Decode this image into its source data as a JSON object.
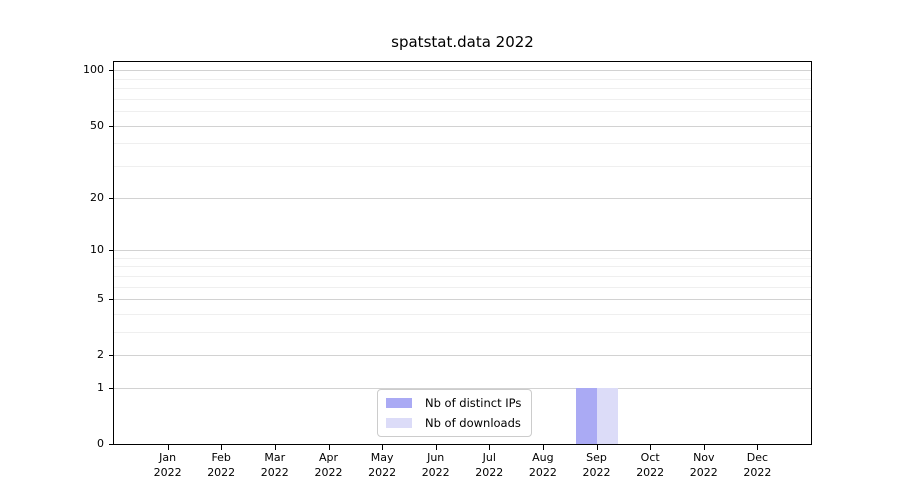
{
  "chart_data": {
    "type": "bar",
    "title": "spatstat.data 2022",
    "categories": [
      [
        "Jan",
        "2022"
      ],
      [
        "Feb",
        "2022"
      ],
      [
        "Mar",
        "2022"
      ],
      [
        "Apr",
        "2022"
      ],
      [
        "May",
        "2022"
      ],
      [
        "Jun",
        "2022"
      ],
      [
        "Jul",
        "2022"
      ],
      [
        "Aug",
        "2022"
      ],
      [
        "Sep",
        "2022"
      ],
      [
        "Oct",
        "2022"
      ],
      [
        "Nov",
        "2022"
      ],
      [
        "Dec",
        "2022"
      ]
    ],
    "series": [
      {
        "name": "Nb of distinct IPs",
        "color": "#aaaaf4",
        "values": [
          0,
          0,
          0,
          0,
          0,
          0,
          0,
          0,
          1,
          0,
          0,
          0
        ]
      },
      {
        "name": "Nb of downloads",
        "color": "#dcdcf8",
        "values": [
          0,
          0,
          0,
          0,
          0,
          0,
          0,
          0,
          1,
          0,
          0,
          0
        ]
      }
    ],
    "xlabel": "",
    "ylabel": "",
    "yscale": "log1p",
    "yticks": [
      0,
      1,
      2,
      5,
      10,
      20,
      50,
      100
    ],
    "yticks_minor": [
      3,
      4,
      6,
      7,
      8,
      9,
      30,
      40,
      60,
      70,
      80,
      90
    ],
    "ylim": [
      0,
      111
    ],
    "grid": true,
    "legend_position": "bottom-center"
  },
  "colors": {
    "grid_major": "#d2d2d2",
    "grid_minor": "#efefef",
    "axis": "#000000",
    "legend_border": "#cccccc",
    "background": "#ffffff"
  }
}
